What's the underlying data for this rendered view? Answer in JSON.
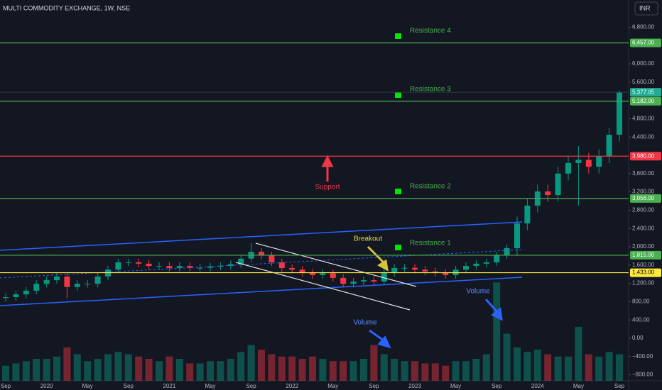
{
  "chart_data": {
    "type": "candlestick",
    "title": "MULTI COMMODITY EXCHANGE, 1W, NSE",
    "currency": "INR",
    "categories": [
      "Sep",
      null,
      null,
      null,
      "2020",
      null,
      null,
      null,
      "May",
      null,
      null,
      null,
      "Sep",
      null,
      null,
      null,
      "2021",
      null,
      null,
      null,
      "May",
      null,
      null,
      null,
      "Sep",
      null,
      null,
      null,
      "2022",
      null,
      null,
      null,
      "May",
      null,
      null,
      null,
      "Sep",
      null,
      null,
      null,
      "2023",
      null,
      null,
      null,
      "May",
      null,
      null,
      null,
      "Sep",
      null,
      null,
      null,
      "2024",
      null,
      null,
      null,
      "May",
      null,
      null,
      null,
      "Sep"
    ],
    "open": [
      880,
      900,
      960,
      1040,
      1190,
      1270,
      1350,
      1120,
      1190,
      1190,
      1350,
      1500,
      1660,
      1660,
      1630,
      1580,
      1580,
      1535,
      1580,
      1540,
      1540,
      1570,
      1580,
      1620,
      1740,
      1890,
      1810,
      1660,
      1535,
      1500,
      1430,
      1380,
      1420,
      1320,
      1190,
      1240,
      1270,
      1240,
      1430,
      1535,
      1540,
      1500,
      1460,
      1430,
      1380,
      1500,
      1580,
      1630,
      1660,
      1810,
      1970,
      2510,
      2900,
      3210,
      3130,
      3600,
      3830,
      3900,
      3750,
      3980,
      4450
    ],
    "high": [
      980,
      1040,
      1120,
      1270,
      1350,
      1430,
      1430,
      1270,
      1270,
      1430,
      1580,
      1740,
      1740,
      1740,
      1710,
      1660,
      1660,
      1660,
      1660,
      1620,
      1650,
      1660,
      1700,
      1820,
      2080,
      1970,
      1890,
      1740,
      1615,
      1580,
      1510,
      1500,
      1500,
      1400,
      1320,
      1350,
      1350,
      1510,
      1615,
      1620,
      1620,
      1580,
      1540,
      1510,
      1580,
      1660,
      1710,
      1740,
      1890,
      2050,
      2660,
      3050,
      3360,
      3360,
      3750,
      3980,
      4200,
      4050,
      4130,
      4600,
      5420
    ],
    "low": [
      800,
      820,
      880,
      960,
      1110,
      1190,
      880,
      1040,
      1110,
      1110,
      1270,
      1420,
      1580,
      1550,
      1500,
      1500,
      1455,
      1455,
      1460,
      1460,
      1460,
      1490,
      1500,
      1540,
      1660,
      1730,
      1580,
      1455,
      1420,
      1350,
      1300,
      1300,
      1240,
      1110,
      1110,
      1160,
      1160,
      1160,
      1350,
      1455,
      1420,
      1380,
      1350,
      1300,
      1300,
      1420,
      1500,
      1550,
      1580,
      1730,
      1820,
      2360,
      2750,
      2980,
      2980,
      3450,
      2900,
      3600,
      3600,
      3830,
      4300
    ],
    "close": [
      900,
      960,
      1040,
      1190,
      1270,
      1350,
      1120,
      1190,
      1190,
      1350,
      1500,
      1660,
      1660,
      1630,
      1580,
      1580,
      1535,
      1580,
      1540,
      1540,
      1570,
      1580,
      1620,
      1740,
      1890,
      1810,
      1660,
      1535,
      1500,
      1430,
      1380,
      1420,
      1320,
      1190,
      1240,
      1270,
      1240,
      1430,
      1535,
      1540,
      1500,
      1460,
      1430,
      1380,
      1500,
      1580,
      1630,
      1660,
      1810,
      1970,
      2510,
      2900,
      3210,
      3130,
      3600,
      3830,
      3900,
      3750,
      3980,
      4450,
      5377.05
    ],
    "volume": [
      -600,
      -550,
      -500,
      -450,
      -450,
      -400,
      -200,
      -350,
      -500,
      -450,
      -350,
      -300,
      -350,
      -400,
      -450,
      -500,
      -400,
      -450,
      -550,
      -550,
      -500,
      -500,
      -450,
      -300,
      -150,
      -250,
      -350,
      -400,
      -400,
      -450,
      -400,
      -450,
      -500,
      -500,
      -500,
      -450,
      -150,
      -350,
      -450,
      -500,
      -500,
      -550,
      -550,
      -600,
      -500,
      -500,
      -450,
      -350,
      1220,
      100,
      -200,
      -300,
      -250,
      -350,
      -400,
      -400,
      250,
      -350,
      -400,
      -300,
      -350
    ],
    "up_color": "#089981",
    "down_color": "#f23645",
    "ylim": [
      -930,
      7395
    ],
    "yticks": [
      {
        "value": 6800,
        "label": "6,800.00"
      },
      {
        "value": 6000,
        "label": "6,000.00"
      },
      {
        "value": 5600,
        "label": "5,600.00"
      },
      {
        "value": 4800,
        "label": "4,800.00"
      },
      {
        "value": 4400,
        "label": "4,400.00"
      },
      {
        "value": 3600,
        "label": "3,600.00"
      },
      {
        "value": 3200,
        "label": "3,200.00"
      },
      {
        "value": 2800,
        "label": "2,800.00"
      },
      {
        "value": 2400,
        "label": "2,400.00"
      },
      {
        "value": 2000,
        "label": "2,000.00"
      },
      {
        "value": 1600,
        "label": "1,600.00"
      },
      {
        "value": 1200,
        "label": "1,200.00"
      },
      {
        "value": 800,
        "label": "800.00"
      },
      {
        "value": 400,
        "label": "400.00"
      },
      {
        "value": 0,
        "label": "0.00"
      },
      {
        "value": -400,
        "label": "−400.00"
      },
      {
        "value": -800,
        "label": "−800.00"
      }
    ],
    "levels": [
      {
        "value": 6457,
        "label": "6,457.00",
        "name": "Resistance 4",
        "color": "#4caf50"
      },
      {
        "value": 5182,
        "label": "5,182.00",
        "name": "Resistance 3",
        "color": "#4caf50"
      },
      {
        "value": 3980,
        "label": "3,980.00",
        "color": "#f23645"
      },
      {
        "value": 3056,
        "label": "3,056.00",
        "name": "Resistance 2",
        "color": "#4caf50"
      },
      {
        "value": 1815,
        "label": "1,815.00",
        "name": "Resistance 1",
        "color": "#4caf50"
      },
      {
        "value": 1433,
        "label": "1,433.00",
        "color": "#ffeb3b"
      }
    ],
    "last_price": {
      "value": 5377.05,
      "label": "5,377.05",
      "color": "#22ab94"
    },
    "annotations": [
      "Support",
      "Breakout",
      "Volume",
      "Volume"
    ]
  }
}
